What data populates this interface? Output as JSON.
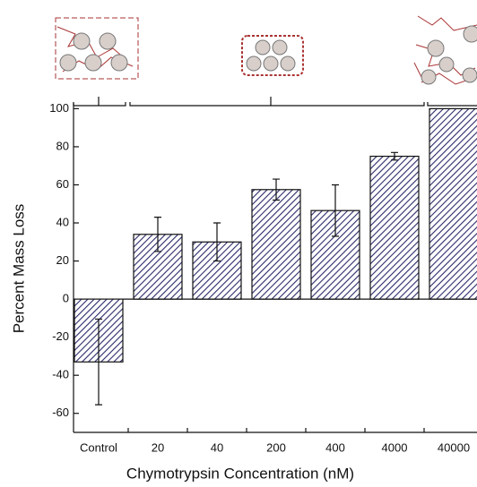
{
  "chart_data": {
    "type": "bar",
    "x_label": "Chymotrypsin Concentration (nM)",
    "y_label": "Percent Mass Loss",
    "categories": [
      "Control",
      "20",
      "40",
      "200",
      "400",
      "4000",
      "40000"
    ],
    "values": [
      -33,
      34,
      30,
      57.5,
      46.5,
      75,
      100
    ],
    "errors": [
      22.5,
      9,
      10,
      5.5,
      13.5,
      2,
      0
    ],
    "color": "#2b2a6b",
    "ylim": [
      -70,
      103
    ],
    "yticks": [
      -60,
      -40,
      -20,
      0,
      20,
      40,
      60,
      80,
      100
    ]
  }
}
